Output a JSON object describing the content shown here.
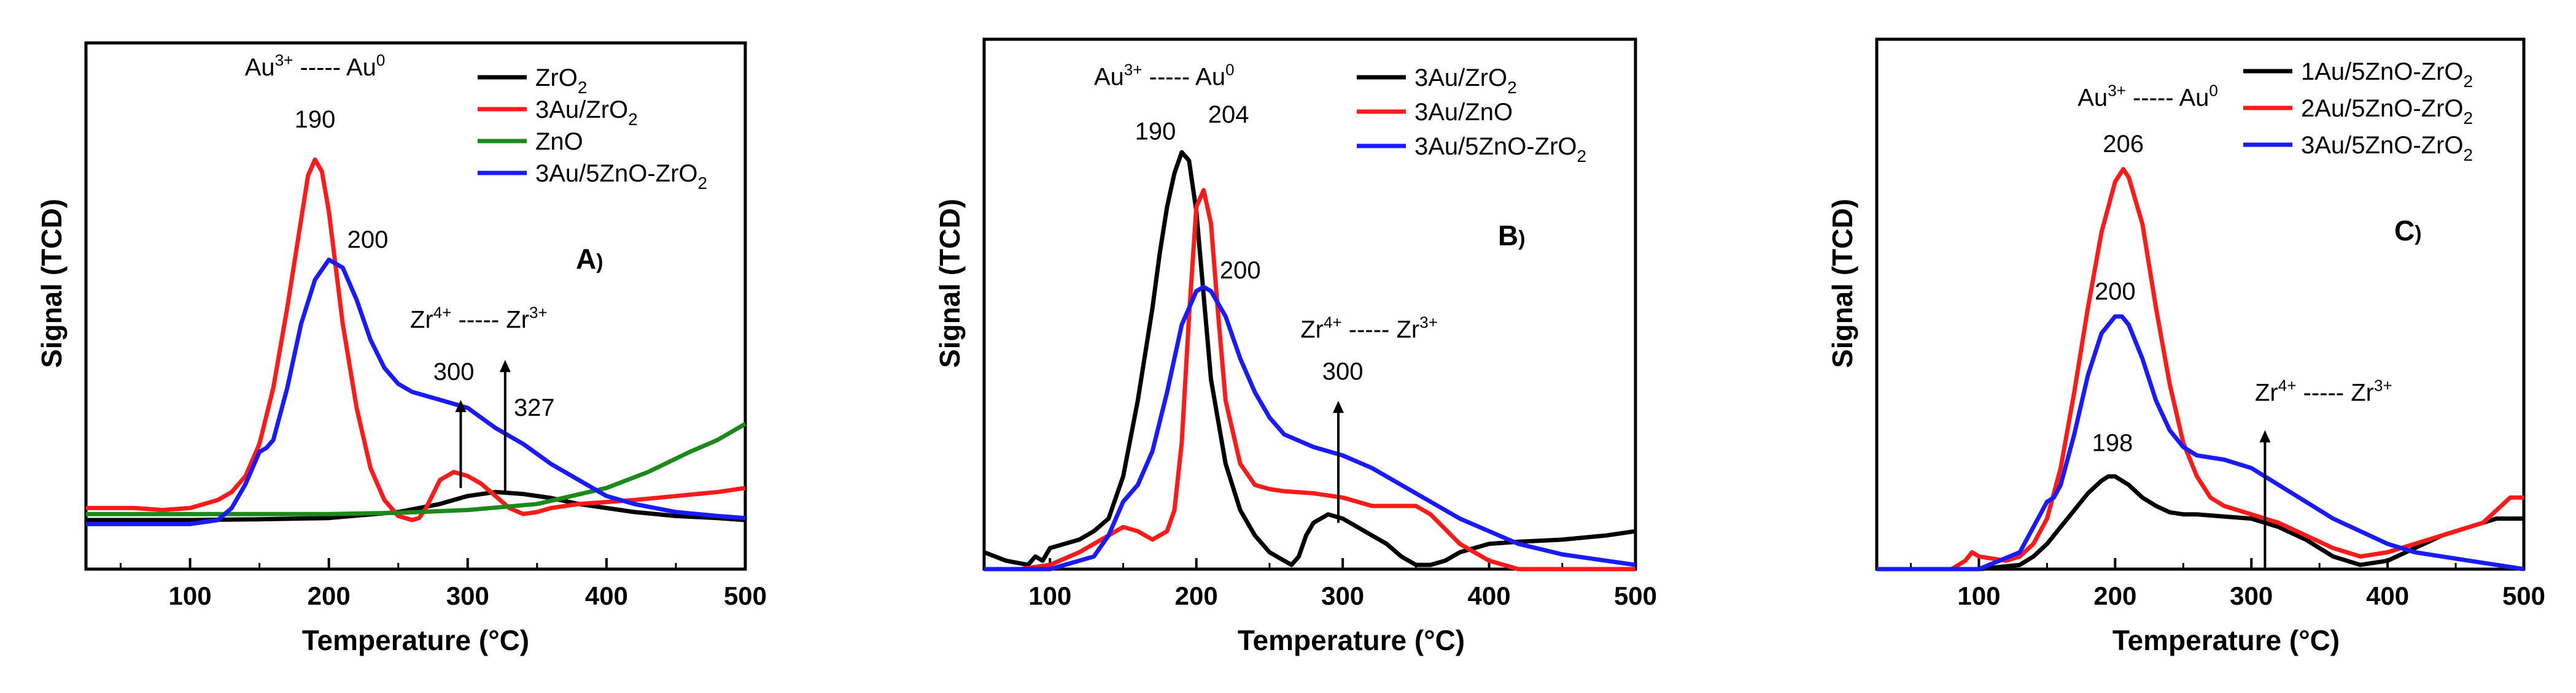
{
  "figure": {
    "colors": {
      "black": "#000000",
      "red": "#ff1a1a",
      "green": "#1b8a1b",
      "blue": "#1a1aff"
    }
  },
  "chart_data": [
    {
      "type": "line",
      "panel_label": "A",
      "panel_suffix": ")",
      "xlabel": "Temperature (°C)",
      "ylabel": "Signal (TCD)",
      "xlim": [
        25,
        500
      ],
      "ylim": [
        0,
        1
      ],
      "xticks": [
        100,
        200,
        300,
        400,
        500
      ],
      "legend": {
        "placement": "top-right"
      },
      "series": [
        {
          "name": "ZrO",
          "sub": "2",
          "color": "#000000",
          "x": [
            25,
            100,
            150,
            200,
            250,
            280,
            300,
            320,
            340,
            360,
            380,
            400,
            420,
            450,
            480,
            500
          ],
          "y": [
            0.07,
            0.07,
            0.072,
            0.075,
            0.09,
            0.11,
            0.13,
            0.14,
            0.135,
            0.125,
            0.11,
            0.1,
            0.09,
            0.08,
            0.075,
            0.07
          ]
        },
        {
          "name": "3Au/ZrO",
          "sub": "2",
          "color": "#ff1a1a",
          "x": [
            25,
            60,
            80,
            100,
            120,
            130,
            140,
            150,
            160,
            170,
            180,
            185,
            190,
            195,
            200,
            205,
            210,
            220,
            230,
            240,
            250,
            260,
            265,
            270,
            280,
            290,
            300,
            310,
            320,
            330,
            340,
            350,
            360,
            380,
            400,
            420,
            450,
            480,
            500
          ],
          "y": [
            0.1,
            0.1,
            0.095,
            0.1,
            0.12,
            0.14,
            0.18,
            0.26,
            0.4,
            0.6,
            0.82,
            0.93,
            0.97,
            0.94,
            0.84,
            0.7,
            0.56,
            0.35,
            0.2,
            0.12,
            0.08,
            0.07,
            0.075,
            0.1,
            0.17,
            0.19,
            0.18,
            0.16,
            0.13,
            0.1,
            0.085,
            0.09,
            0.1,
            0.11,
            0.115,
            0.12,
            0.13,
            0.14,
            0.15
          ]
        },
        {
          "name": "ZnO",
          "sub": "",
          "color": "#1b8a1b",
          "x": [
            25,
            100,
            150,
            200,
            250,
            300,
            350,
            400,
            430,
            460,
            480,
            500
          ],
          "y": [
            0.085,
            0.085,
            0.085,
            0.085,
            0.088,
            0.095,
            0.11,
            0.15,
            0.19,
            0.24,
            0.27,
            0.31
          ]
        },
        {
          "name": "3Au/5ZnO-ZrO",
          "sub": "2",
          "color": "#1a1aff",
          "x": [
            25,
            100,
            120,
            130,
            140,
            150,
            155,
            160,
            170,
            180,
            190,
            200,
            210,
            220,
            230,
            240,
            250,
            260,
            280,
            300,
            320,
            340,
            360,
            380,
            400,
            420,
            450,
            480,
            500
          ],
          "y": [
            0.06,
            0.06,
            0.07,
            0.1,
            0.16,
            0.24,
            0.25,
            0.27,
            0.4,
            0.56,
            0.67,
            0.72,
            0.7,
            0.62,
            0.52,
            0.45,
            0.41,
            0.39,
            0.37,
            0.35,
            0.3,
            0.26,
            0.21,
            0.17,
            0.13,
            0.11,
            0.09,
            0.08,
            0.075
          ]
        }
      ],
      "annotations": [
        {
          "kind": "transition",
          "left": "Au",
          "left_sup": "3+",
          "dash": "-----",
          "right": "Au",
          "right_sup": "0",
          "x": 190,
          "y": 1.18
        },
        {
          "kind": "peak",
          "text": "190",
          "color": "#ff1a1a",
          "x": 190,
          "y": 1.05
        },
        {
          "kind": "peak",
          "text": "200",
          "color": "#1a1aff",
          "x": 228,
          "y": 0.75
        },
        {
          "kind": "transition",
          "left": "Zr",
          "left_sup": "4+",
          "dash": "-----",
          "right": "Zr",
          "right_sup": "3+",
          "x": 308,
          "y": 0.55
        },
        {
          "kind": "value",
          "text": "300",
          "color": "#000000",
          "x": 290,
          "y": 0.42
        },
        {
          "kind": "value",
          "text": "327",
          "color": "#000000",
          "x": 348,
          "y": 0.33
        }
      ],
      "arrows": [
        {
          "x": 295,
          "y0": 0.15,
          "y1": 0.37
        },
        {
          "x": 327,
          "y0": 0.14,
          "y1": 0.47
        }
      ]
    },
    {
      "type": "line",
      "panel_label": "B",
      "panel_suffix": ")",
      "xlabel": "Temperature (°C)",
      "ylabel": "Signal (TCD)",
      "xlim": [
        55,
        500
      ],
      "ylim": [
        0,
        1
      ],
      "xticks": [
        100,
        200,
        300,
        400,
        500
      ],
      "legend": {
        "placement": "top-right"
      },
      "series": [
        {
          "name": "3Au/ZrO",
          "sub": "2",
          "color": "#000000",
          "x": [
            55,
            70,
            85,
            90,
            95,
            100,
            110,
            120,
            130,
            140,
            150,
            160,
            170,
            175,
            180,
            185,
            190,
            195,
            200,
            205,
            210,
            220,
            230,
            240,
            250,
            260,
            265,
            270,
            275,
            280,
            290,
            300,
            310,
            320,
            330,
            340,
            350,
            360,
            370,
            380,
            400,
            420,
            450,
            480,
            500
          ],
          "y": [
            0.04,
            0.02,
            0.01,
            0.03,
            0.02,
            0.05,
            0.06,
            0.07,
            0.09,
            0.12,
            0.22,
            0.4,
            0.62,
            0.75,
            0.86,
            0.94,
            0.99,
            0.97,
            0.85,
            0.65,
            0.45,
            0.25,
            0.14,
            0.08,
            0.04,
            0.02,
            0.01,
            0.03,
            0.08,
            0.11,
            0.13,
            0.12,
            0.1,
            0.08,
            0.06,
            0.03,
            0.01,
            0.01,
            0.02,
            0.04,
            0.06,
            0.065,
            0.07,
            0.08,
            0.09
          ]
        },
        {
          "name": "3Au/ZnO",
          "sub": "",
          "color": "#ff1a1a",
          "x": [
            55,
            80,
            100,
            120,
            140,
            150,
            160,
            170,
            180,
            185,
            190,
            195,
            200,
            205,
            210,
            215,
            220,
            230,
            240,
            250,
            260,
            280,
            300,
            320,
            340,
            350,
            360,
            380,
            400,
            420,
            450,
            480,
            500
          ],
          "y": [
            0.0,
            0.0,
            0.01,
            0.04,
            0.08,
            0.1,
            0.09,
            0.07,
            0.09,
            0.14,
            0.3,
            0.6,
            0.86,
            0.9,
            0.82,
            0.6,
            0.4,
            0.25,
            0.2,
            0.19,
            0.185,
            0.18,
            0.17,
            0.15,
            0.15,
            0.15,
            0.13,
            0.06,
            0.02,
            0.0,
            0.0,
            0.0,
            0.0
          ]
        },
        {
          "name": "3Au/5ZnO-ZrO",
          "sub": "2",
          "color": "#1a1aff",
          "x": [
            55,
            100,
            130,
            140,
            150,
            160,
            170,
            180,
            190,
            200,
            205,
            210,
            220,
            230,
            240,
            250,
            260,
            280,
            300,
            320,
            340,
            360,
            380,
            400,
            420,
            450,
            480,
            500
          ],
          "y": [
            0.0,
            0.0,
            0.03,
            0.08,
            0.16,
            0.2,
            0.28,
            0.42,
            0.58,
            0.66,
            0.67,
            0.66,
            0.6,
            0.5,
            0.42,
            0.36,
            0.32,
            0.29,
            0.27,
            0.24,
            0.2,
            0.16,
            0.12,
            0.09,
            0.06,
            0.035,
            0.02,
            0.01
          ]
        }
      ],
      "annotations": [
        {
          "kind": "transition",
          "left": "Au",
          "left_sup": "3+",
          "dash": "-----",
          "right": "Au",
          "right_sup": "0",
          "x": 178,
          "y": 1.15
        },
        {
          "kind": "peak",
          "text": "190",
          "color": "#000000",
          "x": 172,
          "y": 1.02
        },
        {
          "kind": "peak",
          "text": "204",
          "color": "#ff1a1a",
          "x": 222,
          "y": 1.06
        },
        {
          "kind": "peak",
          "text": "200",
          "color": "#1a1aff",
          "x": 230,
          "y": 0.69
        },
        {
          "kind": "transition",
          "left": "Zr",
          "left_sup": "4+",
          "dash": "-----",
          "right": "Zr",
          "right_sup": "3+",
          "x": 318,
          "y": 0.55
        },
        {
          "kind": "value",
          "text": "300",
          "color": "#000000",
          "x": 300,
          "y": 0.45
        }
      ],
      "arrows": [
        {
          "x": 297,
          "y0": 0.11,
          "y1": 0.4
        }
      ]
    },
    {
      "type": "line",
      "panel_label": "C",
      "panel_suffix": ")",
      "xlabel": "Temperature (°C)",
      "ylabel": "Signal (TCD)",
      "xlim": [
        25,
        500
      ],
      "ylim": [
        0,
        1
      ],
      "xticks": [
        100,
        200,
        300,
        400,
        500
      ],
      "legend": {
        "placement": "top-right"
      },
      "series": [
        {
          "name": "1Au/5ZnO-ZrO",
          "sub": "2",
          "color": "#000000",
          "x": [
            25,
            100,
            130,
            140,
            150,
            160,
            170,
            180,
            190,
            195,
            200,
            210,
            220,
            230,
            240,
            250,
            260,
            280,
            300,
            320,
            340,
            360,
            380,
            400,
            420,
            440,
            460,
            480,
            500
          ],
          "y": [
            0.0,
            0.0,
            0.01,
            0.03,
            0.06,
            0.1,
            0.14,
            0.18,
            0.21,
            0.22,
            0.22,
            0.2,
            0.17,
            0.15,
            0.135,
            0.13,
            0.13,
            0.125,
            0.12,
            0.1,
            0.07,
            0.03,
            0.01,
            0.02,
            0.05,
            0.08,
            0.1,
            0.12,
            0.12
          ]
        },
        {
          "name": "2Au/5ZnO-ZrO",
          "sub": "2",
          "color": "#ff1a1a",
          "x": [
            25,
            80,
            90,
            95,
            100,
            120,
            130,
            140,
            150,
            160,
            170,
            180,
            190,
            200,
            206,
            210,
            220,
            230,
            240,
            250,
            260,
            270,
            280,
            300,
            320,
            340,
            360,
            380,
            400,
            420,
            440,
            460,
            470,
            480,
            490,
            500
          ],
          "y": [
            0.0,
            0.0,
            0.02,
            0.04,
            0.03,
            0.02,
            0.03,
            0.06,
            0.12,
            0.24,
            0.42,
            0.62,
            0.8,
            0.92,
            0.95,
            0.93,
            0.82,
            0.62,
            0.44,
            0.3,
            0.22,
            0.17,
            0.15,
            0.13,
            0.11,
            0.08,
            0.05,
            0.03,
            0.04,
            0.06,
            0.08,
            0.1,
            0.11,
            0.14,
            0.17,
            0.17
          ]
        },
        {
          "name": "3Au/5ZnO-ZrO",
          "sub": "2",
          "color": "#1a1aff",
          "x": [
            25,
            100,
            130,
            140,
            150,
            155,
            160,
            170,
            180,
            190,
            200,
            205,
            210,
            220,
            230,
            240,
            250,
            260,
            280,
            300,
            320,
            340,
            360,
            380,
            400,
            420,
            440,
            460,
            480,
            500
          ],
          "y": [
            0.0,
            0.0,
            0.04,
            0.1,
            0.16,
            0.17,
            0.2,
            0.32,
            0.46,
            0.56,
            0.6,
            0.6,
            0.58,
            0.5,
            0.4,
            0.33,
            0.29,
            0.27,
            0.26,
            0.24,
            0.2,
            0.16,
            0.12,
            0.09,
            0.06,
            0.04,
            0.03,
            0.02,
            0.01,
            0.0
          ]
        }
      ],
      "annotations": [
        {
          "kind": "transition",
          "left": "Au",
          "left_sup": "3+",
          "dash": "-----",
          "right": "Au",
          "right_sup": "0",
          "x": 224,
          "y": 1.1
        },
        {
          "kind": "peak",
          "text": "206",
          "color": "#ff1a1a",
          "x": 206,
          "y": 0.99
        },
        {
          "kind": "peak",
          "text": "200",
          "color": "#1a1aff",
          "x": 200,
          "y": 0.64
        },
        {
          "kind": "value",
          "text": "198",
          "color": "#000000",
          "x": 198,
          "y": 0.28
        },
        {
          "kind": "transition",
          "left": "Zr",
          "left_sup": "4+",
          "dash": "-----",
          "right": "Zr",
          "right_sup": "3+",
          "x": 353,
          "y": 0.4
        }
      ],
      "arrows": [
        {
          "x": 310,
          "y0": 0.0,
          "y1": 0.33
        }
      ]
    }
  ]
}
